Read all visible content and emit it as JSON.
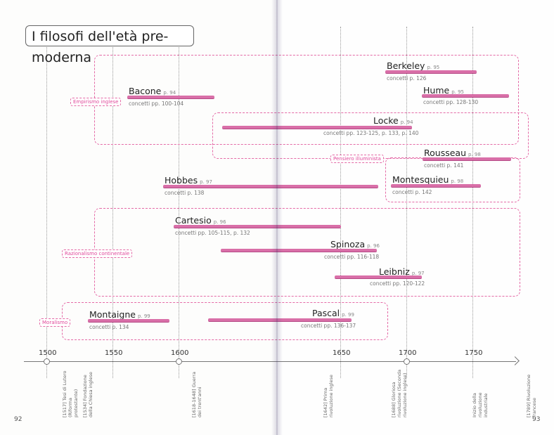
{
  "title": "I filosofi dell'età pre-moderna",
  "groups": {
    "empirismo": "Empirismo inglese",
    "illuminismo": "Pensiero illuminista",
    "razionalismo": "Razionalismo continentale",
    "moralismo": "Moralismo"
  },
  "philosophers": {
    "berkeley": {
      "name": "Berkeley",
      "page": "p. 95",
      "concepts": "concetti p. 126"
    },
    "hume": {
      "name": "Hume",
      "page": "p. 95",
      "concepts": "concetti pp. 128-130"
    },
    "bacone": {
      "name": "Bacone",
      "page": "p. 94",
      "concepts": "concetti pp. 100-104"
    },
    "locke": {
      "name": "Locke",
      "page": "p. 94",
      "concepts": "concetti pp. 123-125, p. 133, p. 140"
    },
    "rousseau": {
      "name": "Rousseau",
      "page": "p. 98",
      "concepts": "concetti p. 141"
    },
    "hobbes": {
      "name": "Hobbes",
      "page": "p. 97",
      "concepts": "concetti p. 138"
    },
    "montesquieu": {
      "name": "Montesquieu",
      "page": "p. 98",
      "concepts": "concetti p. 142"
    },
    "cartesio": {
      "name": "Cartesio",
      "page": "p. 96",
      "concepts": "concetti pp. 105-115, p. 132"
    },
    "spinoza": {
      "name": "Spinoza",
      "page": "p. 96",
      "concepts": "concetti pp. 116-118"
    },
    "leibniz": {
      "name": "Leibniz",
      "page": "p. 97",
      "concepts": "concetti pp. 120-122"
    },
    "montaigne": {
      "name": "Montaigne",
      "page": "p. 99",
      "concepts": "concetti p. 134"
    },
    "pascal": {
      "name": "Pascal",
      "page": "p. 99",
      "concepts": "concetti pp. 136-137"
    }
  },
  "axis": {
    "ticks": [
      "1500",
      "1550",
      "1600",
      "1650",
      "1700",
      "1750"
    ]
  },
  "events": {
    "e1517": "[1517] Tesi di Lutero (Riforma protestante)",
    "e1534": "[1534] Fondazione della Chiesa inglese",
    "e1618": "[1618-1648] Guerra dei trent'anni",
    "e1642": "[1642] Prima rivoluzione inglese",
    "e1688": "[1688] Gloriosa rivoluzione (Seconda rivoluzione inglese)",
    "e1750": "Inizio della rivoluzione industriale",
    "e1789": "[1789] Rivoluzione francese"
  },
  "page_numbers": {
    "left": "92",
    "right": "93"
  },
  "colors": {
    "accent": "#d96fa8",
    "tag": "#e0489a",
    "axis": "#777777"
  }
}
